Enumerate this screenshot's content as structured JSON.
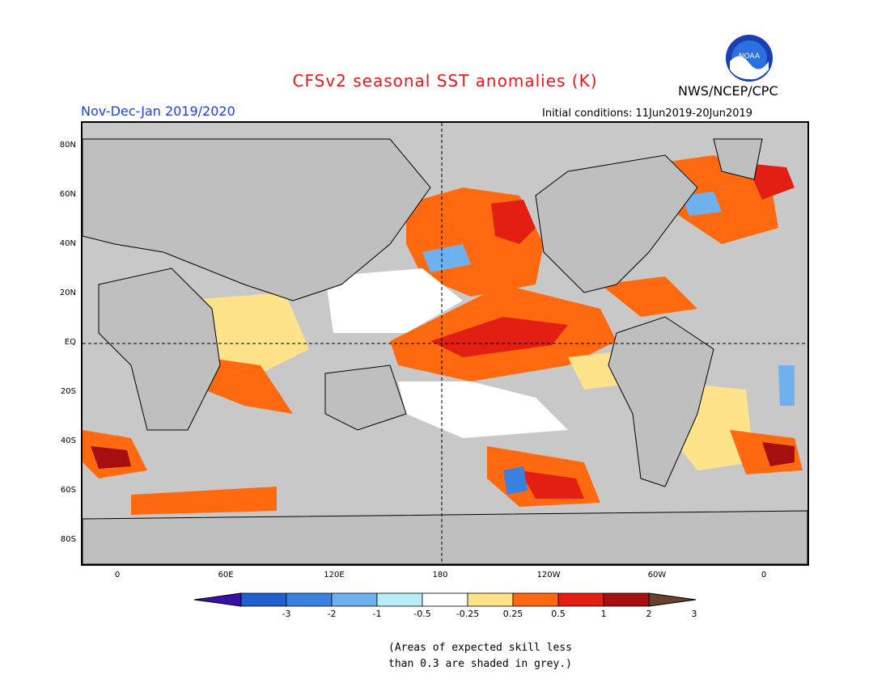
{
  "title": "CFSv2 seasonal SST anomalies (K)",
  "organization": "NWS/NCEP/CPC",
  "logo_text": "NOAA",
  "season": "Nov-Dec-Jan 2019/2020",
  "initial_conditions": "Initial conditions: 11Jun2019-20Jun2019",
  "lat_labels": [
    "80N",
    "60N",
    "40N",
    "20N",
    "EQ",
    "20S",
    "40S",
    "60S",
    "80S"
  ],
  "lon_labels": [
    "0",
    "60E",
    "120E",
    "180",
    "120W",
    "60W",
    "0"
  ],
  "colorbar": {
    "labels": [
      "-3",
      "-2",
      "-1",
      "-0.5",
      "-0.25",
      "0.25",
      "0.5",
      "1",
      "2",
      "3"
    ],
    "colors": [
      "#3a0ea8",
      "#1f5fcf",
      "#3b82e0",
      "#6fb0ee",
      "#b8ecf6",
      "#ffffff",
      "#ffe38a",
      "#ff6a10",
      "#e21f12",
      "#a50f0f",
      "#6b4030"
    ]
  },
  "note_line1": "(Areas of expected skill less",
  "note_line2": "than 0.3 are shaded in grey.)",
  "colors": {
    "title": "#e8171f",
    "season": "#1f3fd6",
    "land": "#bfbfbf",
    "ocean_skill_grey": "#c8c8c8"
  }
}
